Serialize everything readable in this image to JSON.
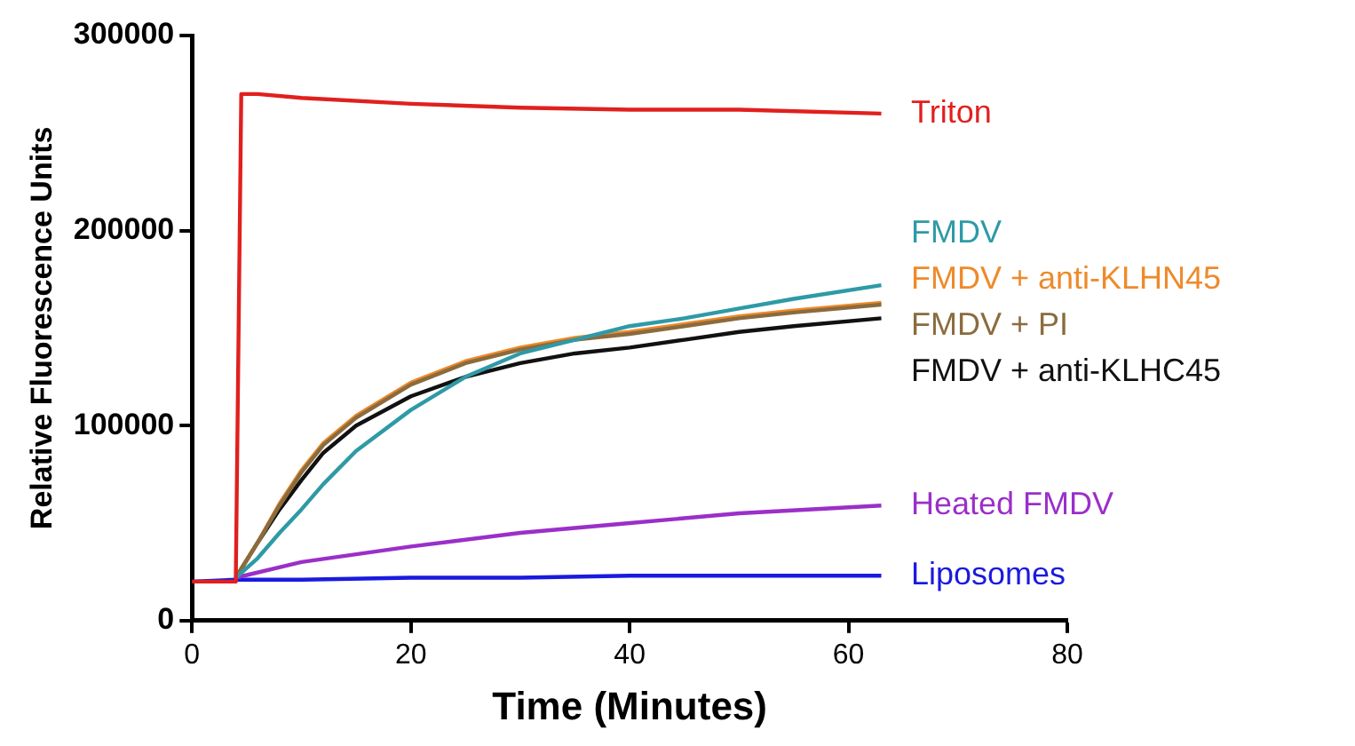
{
  "chart_data": {
    "type": "line",
    "xlabel": "Time (Minutes)",
    "ylabel": "Relative Fluorescence Units",
    "xlim": [
      0,
      80
    ],
    "xticks": [
      0,
      20,
      40,
      60,
      80
    ],
    "ylim": [
      0,
      300000
    ],
    "yticks": [
      0,
      100000,
      200000,
      300000
    ],
    "grid": false,
    "legend": false,
    "marker": "none",
    "line_style": "solid",
    "series": [
      {
        "name": "Triton",
        "color": "#e0201e",
        "x": [
          0,
          4,
          4.5,
          6,
          10,
          20,
          30,
          40,
          50,
          63
        ],
        "values": [
          20000,
          20000,
          270000,
          270000,
          268000,
          265000,
          263000,
          262000,
          262000,
          260000
        ]
      },
      {
        "name": "FMDV",
        "color": "#2e9aa6",
        "x": [
          4,
          6,
          8,
          10,
          12,
          15,
          20,
          25,
          30,
          35,
          40,
          45,
          50,
          55,
          63
        ],
        "values": [
          22000,
          32000,
          45000,
          57000,
          70000,
          87000,
          108000,
          125000,
          137000,
          144000,
          151000,
          155000,
          160000,
          165000,
          172000
        ]
      },
      {
        "name": "FMDV + PI",
        "color": "#8b6b3e",
        "x": [
          4,
          6,
          8,
          10,
          12,
          15,
          20,
          25,
          30,
          35,
          40,
          45,
          50,
          55,
          63
        ],
        "values": [
          22000,
          40000,
          59000,
          76000,
          90000,
          104000,
          121000,
          132000,
          139000,
          144000,
          147000,
          151000,
          155000,
          158000,
          162000
        ]
      },
      {
        "name": "FMDV + anti-KLHN45",
        "color": "#ee8a2a",
        "x": [
          4,
          6,
          8,
          10,
          12,
          15,
          20,
          25,
          30,
          35,
          40,
          45,
          50,
          55,
          63
        ],
        "values": [
          22000,
          40000,
          60000,
          77000,
          91000,
          105000,
          122000,
          133000,
          140000,
          145000,
          148000,
          152000,
          156000,
          159000,
          163000
        ]
      },
      {
        "name": "FMDV + anti-KLHC45",
        "color": "#111111",
        "x": [
          4,
          6,
          8,
          10,
          12,
          15,
          20,
          25,
          30,
          35,
          40,
          45,
          50,
          55,
          63
        ],
        "values": [
          22000,
          40000,
          57000,
          72000,
          86000,
          100000,
          115000,
          125000,
          132000,
          137000,
          140000,
          144000,
          148000,
          151000,
          155000
        ]
      },
      {
        "name": "Heated FMDV",
        "color": "#9b2fc9",
        "x": [
          4,
          10,
          20,
          30,
          40,
          50,
          63
        ],
        "values": [
          22000,
          30000,
          38000,
          45000,
          50000,
          55000,
          59000
        ]
      },
      {
        "name": "Liposomes",
        "color": "#1a1adf",
        "x": [
          0,
          4,
          10,
          20,
          30,
          40,
          50,
          63
        ],
        "values": [
          20000,
          21000,
          21000,
          22000,
          22000,
          23000,
          23000,
          23000
        ]
      }
    ]
  }
}
